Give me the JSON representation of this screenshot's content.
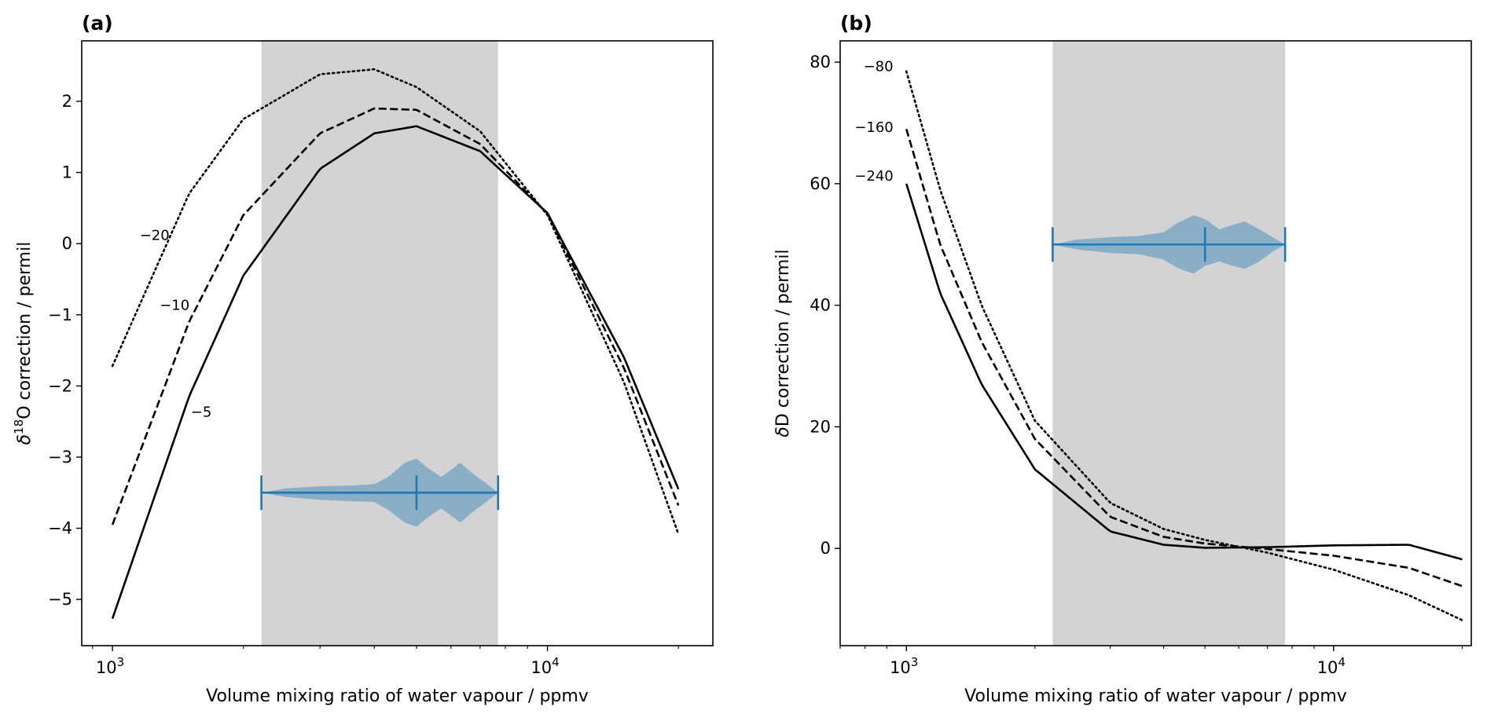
{
  "chart_data": [
    {
      "id": "a",
      "panel_label": "(a)",
      "type": "line",
      "xscale": "log",
      "xlim": [
        850,
        24000
      ],
      "ylim": [
        -5.65,
        2.85
      ],
      "xlabel": "Volume mixing ratio of water vapour / ppmv",
      "ylabel": "δ18O correction / permil",
      "ylabel_parts": {
        "pre": "δ",
        "sup": "18",
        "post": "O correction / permil"
      },
      "xticks": [
        {
          "value": 1000,
          "base": "10",
          "exp": "3"
        },
        {
          "value": 10000,
          "base": "10",
          "exp": "4"
        }
      ],
      "yticks": [
        {
          "value": -5,
          "label": "−5"
        },
        {
          "value": -4,
          "label": "−4"
        },
        {
          "value": -3,
          "label": "−3"
        },
        {
          "value": -2,
          "label": "−2"
        },
        {
          "value": -1,
          "label": "−1"
        },
        {
          "value": 0,
          "label": "0"
        },
        {
          "value": 1,
          "label": "1"
        },
        {
          "value": 2,
          "label": "2"
        }
      ],
      "shaded_range": [
        2200,
        7700
      ],
      "series": [
        {
          "name": "−20",
          "style": "dotted",
          "x": [
            1000,
            1500,
            2000,
            3000,
            4000,
            5000,
            7000,
            10000,
            15000,
            20000
          ],
          "y": [
            -1.72,
            0.7,
            1.75,
            2.38,
            2.45,
            2.2,
            1.58,
            0.4,
            -1.95,
            -4.08
          ]
        },
        {
          "name": "−10",
          "style": "dashed",
          "x": [
            1000,
            1500,
            2000,
            3000,
            4000,
            5000,
            7000,
            10000,
            15000,
            20000
          ],
          "y": [
            -3.95,
            -1.1,
            0.4,
            1.55,
            1.9,
            1.88,
            1.4,
            0.42,
            -1.75,
            -3.68
          ]
        },
        {
          "name": "−5",
          "style": "solid",
          "x": [
            1000,
            1500,
            2000,
            3000,
            4000,
            5000,
            7000,
            10000,
            15000,
            20000
          ],
          "y": [
            -5.27,
            -2.15,
            -0.45,
            1.05,
            1.55,
            1.65,
            1.3,
            0.43,
            -1.6,
            -3.45
          ]
        }
      ],
      "curve_labels": [
        {
          "text": "−20",
          "x": 1250,
          "y": 0.05
        },
        {
          "text": "−10",
          "x": 1390,
          "y": -0.93
        },
        {
          "text": "−5",
          "x": 1600,
          "y": -2.43
        }
      ],
      "violin": {
        "x_min": 2200,
        "x_max": 7700,
        "median": 5000,
        "center": -3.5,
        "profile": [
          [
            2200,
            0.0
          ],
          [
            2500,
            0.06
          ],
          [
            3000,
            0.09
          ],
          [
            3500,
            0.1
          ],
          [
            4000,
            0.12
          ],
          [
            4300,
            0.22
          ],
          [
            4700,
            0.42
          ],
          [
            5000,
            0.48
          ],
          [
            5300,
            0.35
          ],
          [
            5700,
            0.22
          ],
          [
            6000,
            0.32
          ],
          [
            6300,
            0.42
          ],
          [
            6700,
            0.28
          ],
          [
            7200,
            0.14
          ],
          [
            7700,
            0.0
          ]
        ],
        "profile_below": [
          [
            2200,
            0.0
          ],
          [
            2500,
            0.06
          ],
          [
            3000,
            0.1
          ],
          [
            3500,
            0.12
          ],
          [
            4000,
            0.13
          ],
          [
            4300,
            0.24
          ],
          [
            4700,
            0.42
          ],
          [
            5000,
            0.48
          ],
          [
            5300,
            0.35
          ],
          [
            5700,
            0.22
          ],
          [
            6000,
            0.32
          ],
          [
            6300,
            0.42
          ],
          [
            6700,
            0.28
          ],
          [
            7200,
            0.14
          ],
          [
            7700,
            0.0
          ]
        ]
      }
    },
    {
      "id": "b",
      "panel_label": "(b)",
      "type": "line",
      "xscale": "log",
      "xlim": [
        700,
        21000
      ],
      "ylim": [
        -16,
        83.5
      ],
      "xlabel": "Volume mixing ratio of water vapour / ppmv",
      "ylabel": "δD correction / permil",
      "xticks": [
        {
          "value": 1000,
          "base": "10",
          "exp": "3"
        },
        {
          "value": 10000,
          "base": "10",
          "exp": "4"
        }
      ],
      "yticks": [
        {
          "value": 0,
          "label": "0"
        },
        {
          "value": 20,
          "label": "20"
        },
        {
          "value": 40,
          "label": "40"
        },
        {
          "value": 60,
          "label": "60"
        },
        {
          "value": 80,
          "label": "80"
        }
      ],
      "shaded_range": [
        2200,
        7700
      ],
      "series": [
        {
          "name": "−80",
          "style": "dotted",
          "x": [
            1000,
            1200,
            1500,
            2000,
            3000,
            4000,
            5000,
            7000,
            10000,
            15000,
            20000
          ],
          "y": [
            78.5,
            59,
            40,
            21,
            7.5,
            3.2,
            1.4,
            -0.7,
            -3.5,
            -7.7,
            -11.8
          ]
        },
        {
          "name": "−160",
          "style": "dashed",
          "x": [
            1000,
            1200,
            1500,
            2000,
            3000,
            4000,
            5000,
            7000,
            10000,
            15000,
            20000
          ],
          "y": [
            69,
            50,
            34,
            18,
            5.2,
            1.9,
            0.8,
            -0.1,
            -1.2,
            -3.2,
            -6.2
          ]
        },
        {
          "name": "−240",
          "style": "solid",
          "x": [
            1000,
            1200,
            1500,
            2000,
            3000,
            4000,
            5000,
            7000,
            10000,
            15000,
            20000
          ],
          "y": [
            60,
            42,
            27,
            13,
            2.8,
            0.6,
            0.1,
            0.2,
            0.5,
            0.6,
            -1.8
          ]
        }
      ],
      "curve_labels": [
        {
          "text": "−80",
          "x": 860,
          "y": 78.5
        },
        {
          "text": "−160",
          "x": 840,
          "y": 68.5
        },
        {
          "text": "−240",
          "x": 840,
          "y": 60.5
        }
      ],
      "violin": {
        "x_min": 2200,
        "x_max": 7700,
        "median": 5000,
        "center": 50,
        "profile": [
          [
            2200,
            0.0
          ],
          [
            2500,
            0.8
          ],
          [
            3000,
            1.2
          ],
          [
            3500,
            1.4
          ],
          [
            4000,
            2.0
          ],
          [
            4300,
            3.5
          ],
          [
            4700,
            4.8
          ],
          [
            5000,
            4.2
          ],
          [
            5400,
            2.5
          ],
          [
            5800,
            3.2
          ],
          [
            6200,
            3.8
          ],
          [
            6700,
            2.5
          ],
          [
            7200,
            1.2
          ],
          [
            7700,
            0.0
          ]
        ],
        "profile_below": [
          [
            2200,
            0.0
          ],
          [
            2500,
            0.8
          ],
          [
            3000,
            1.4
          ],
          [
            3500,
            1.6
          ],
          [
            4000,
            2.5
          ],
          [
            4300,
            3.8
          ],
          [
            4700,
            4.8
          ],
          [
            5000,
            3.5
          ],
          [
            5400,
            2.8
          ],
          [
            5800,
            3.5
          ],
          [
            6200,
            4.0
          ],
          [
            6700,
            2.8
          ],
          [
            7200,
            1.2
          ],
          [
            7700,
            0.0
          ]
        ]
      }
    }
  ],
  "colors": {
    "shade": "#d3d3d3",
    "violin_fill": "#1f77b4",
    "violin_line": "#1f77b4",
    "curve": "#000000"
  }
}
